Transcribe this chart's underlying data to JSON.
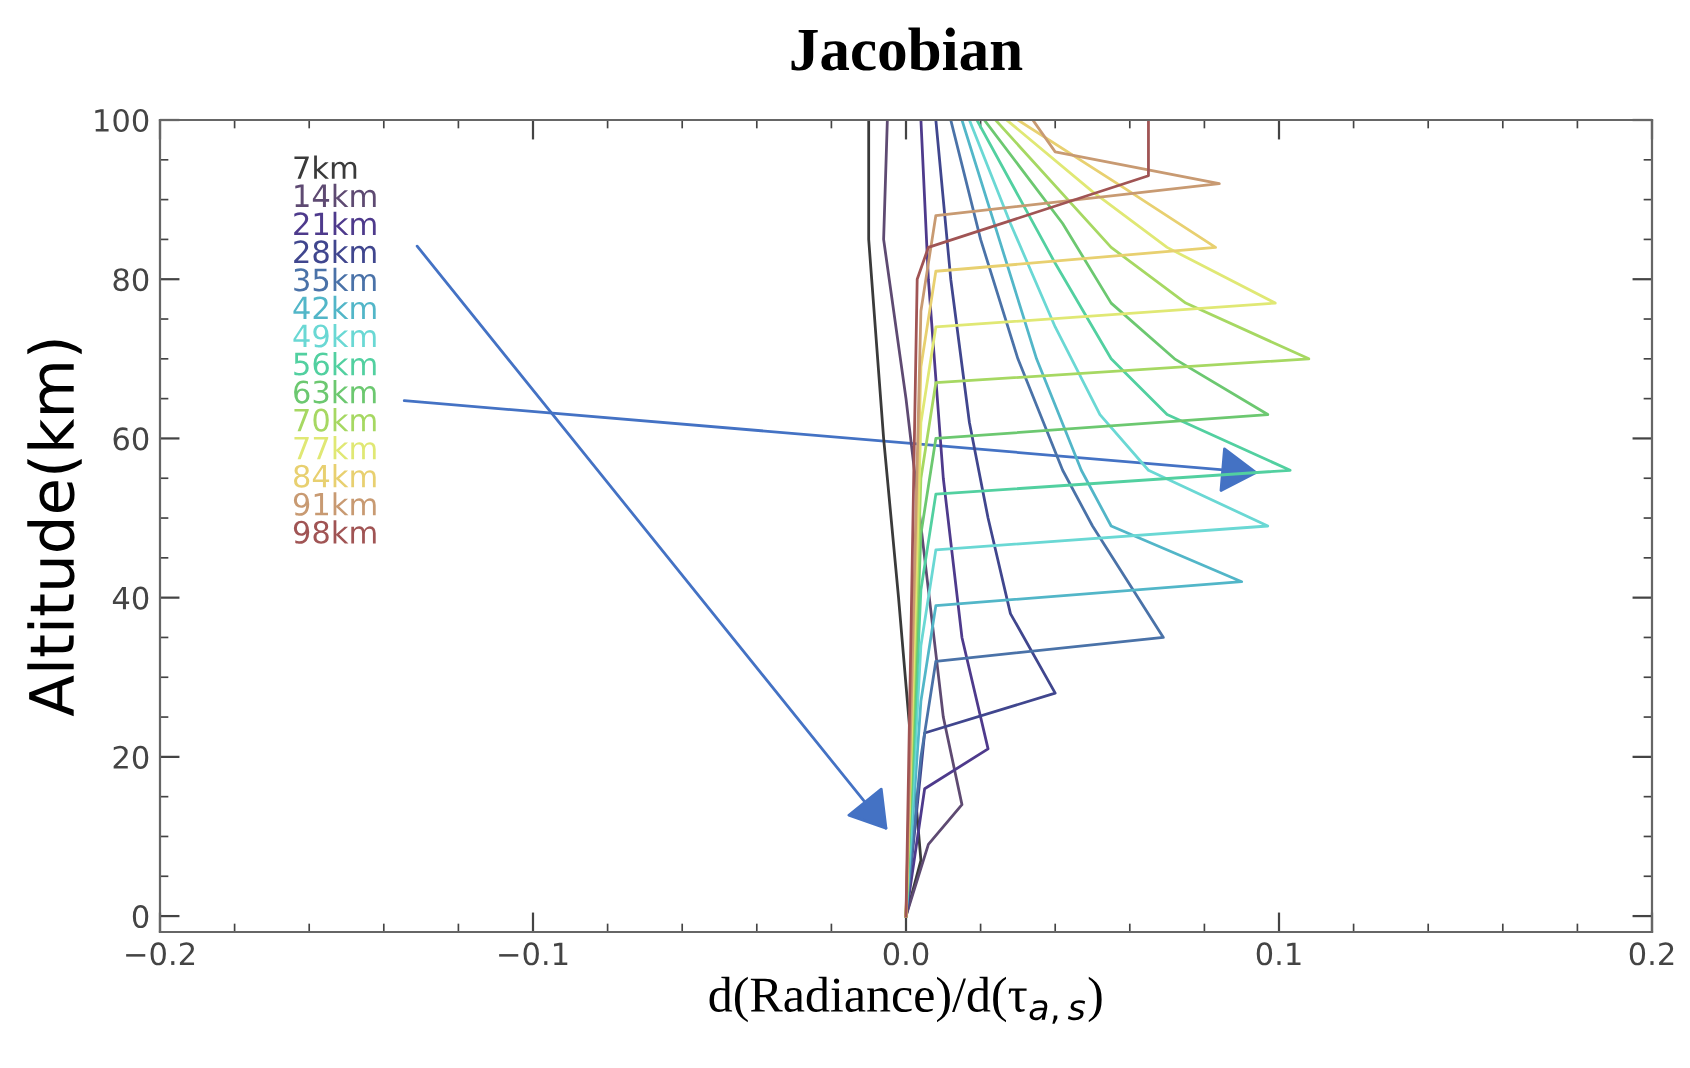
{
  "chart_data": {
    "type": "line",
    "title": "Jacobian",
    "xlabel": "d(Radiance)/d(τ$_{a,s}$)",
    "ylabel": "Altitude(km)",
    "xlim": [
      -0.2,
      0.2
    ],
    "ylim": [
      -2,
      100
    ],
    "xticks": [
      {
        "value": -0.2,
        "label": "−0.2"
      },
      {
        "value": -0.1,
        "label": "−0.1"
      },
      {
        "value": 0.0,
        "label": "0.0"
      },
      {
        "value": 0.1,
        "label": "0.1"
      },
      {
        "value": 0.2,
        "label": "0.2"
      }
    ],
    "yticks": [
      0,
      20,
      40,
      60,
      80,
      100
    ],
    "grid": false,
    "legend": "top left",
    "marker": "none",
    "line_style": "solid",
    "series": [
      {
        "name": "7km",
        "color": "#3a3a3a",
        "x": [
          0,
          0.004,
          -0.002,
          -0.006,
          -0.01,
          -0.01
        ],
        "values": [
          0,
          7,
          40,
          60,
          85,
          100
        ]
      },
      {
        "name": "14km",
        "color": "#5e4a72",
        "x": [
          0,
          0.006,
          0.015,
          0.01,
          0.005,
          0.0,
          -0.006,
          -0.005
        ],
        "values": [
          0,
          9,
          14,
          25,
          45,
          65,
          85,
          100
        ]
      },
      {
        "name": "21km",
        "color": "#4e3a8c",
        "x": [
          0,
          0.005,
          0.022,
          0.015,
          0.01,
          0.006,
          0.004
        ],
        "values": [
          0,
          16,
          21,
          35,
          55,
          80,
          100
        ]
      },
      {
        "name": "28km",
        "color": "#40468e",
        "x": [
          0,
          0.005,
          0.04,
          0.028,
          0.022,
          0.017,
          0.012,
          0.008
        ],
        "values": [
          0,
          23,
          28,
          38,
          50,
          62,
          80,
          100
        ]
      },
      {
        "name": "35km",
        "color": "#4a72a8",
        "x": [
          0,
          0.004,
          0.008,
          0.069,
          0.05,
          0.042,
          0.03,
          0.02,
          0.012
        ],
        "values": [
          0,
          20,
          32,
          35,
          49,
          56,
          70,
          85,
          100
        ]
      },
      {
        "name": "42km",
        "color": "#52b6c8",
        "x": [
          0,
          0.004,
          0.008,
          0.09,
          0.055,
          0.047,
          0.035,
          0.025,
          0.015
        ],
        "values": [
          0,
          27,
          39,
          42,
          49,
          56,
          70,
          85,
          100
        ]
      },
      {
        "name": "49km",
        "color": "#6ad8d4",
        "x": [
          0,
          0.004,
          0.008,
          0.097,
          0.065,
          0.052,
          0.04,
          0.028,
          0.017
        ],
        "values": [
          0,
          34,
          46,
          49,
          56,
          63,
          74,
          87,
          100
        ]
      },
      {
        "name": "56km",
        "color": "#52d0a0",
        "x": [
          0,
          0.004,
          0.008,
          0.103,
          0.07,
          0.055,
          0.04,
          0.019
        ],
        "values": [
          0,
          41,
          53,
          56,
          63,
          70,
          82,
          100
        ]
      },
      {
        "name": "63km",
        "color": "#6cc870",
        "x": [
          0,
          0.004,
          0.008,
          0.097,
          0.072,
          0.055,
          0.042,
          0.021
        ],
        "values": [
          0,
          48,
          60,
          63,
          70,
          77,
          87,
          100
        ]
      },
      {
        "name": "70km",
        "color": "#a6d862",
        "x": [
          0,
          0.004,
          0.008,
          0.108,
          0.075,
          0.055,
          0.024
        ],
        "values": [
          0,
          55,
          67,
          70,
          77,
          84,
          100
        ]
      },
      {
        "name": "77km",
        "color": "#e0e874",
        "x": [
          0,
          0.004,
          0.008,
          0.099,
          0.07,
          0.05,
          0.027
        ],
        "values": [
          0,
          62,
          74,
          77,
          84,
          91,
          100
        ]
      },
      {
        "name": "84km",
        "color": "#e8d070",
        "x": [
          0,
          0.004,
          0.008,
          0.083,
          0.06,
          0.03
        ],
        "values": [
          0,
          69,
          81,
          84,
          91,
          100
        ]
      },
      {
        "name": "91km",
        "color": "#c89a72",
        "x": [
          0,
          0.004,
          0.008,
          0.084,
          0.04,
          0.034
        ],
        "values": [
          0,
          76,
          88,
          92,
          96,
          100
        ]
      },
      {
        "name": "98km",
        "color": "#a05454",
        "x": [
          0,
          0.003,
          0.006,
          0.065,
          0.065
        ],
        "values": [
          0,
          80,
          84,
          93,
          100
        ]
      }
    ]
  }
}
